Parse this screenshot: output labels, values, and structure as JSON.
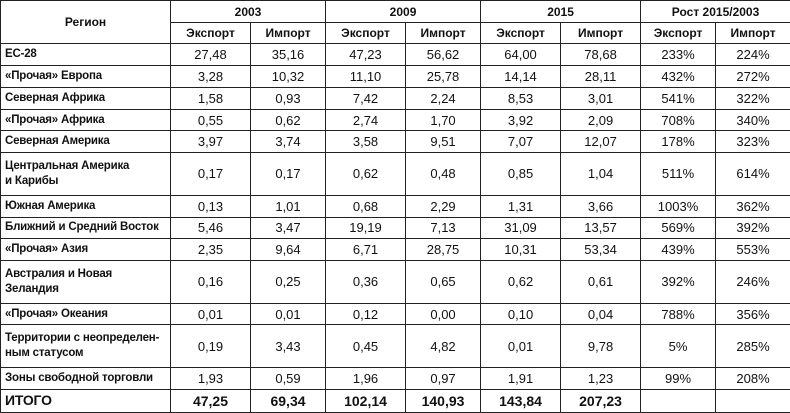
{
  "table": {
    "header": {
      "region": "Регион",
      "groups": [
        "2003",
        "2009",
        "2015",
        "Рост 2015/2003"
      ],
      "sub": [
        "Экспорт",
        "Импорт",
        "Экспорт",
        "Импорт",
        "Экспорт",
        "Импорт",
        "Экспорт",
        "Импорт"
      ]
    },
    "rows": [
      [
        "ЕС-28",
        "27,48",
        "35,16",
        "47,23",
        "56,62",
        "64,00",
        "78,68",
        "233%",
        "224%"
      ],
      [
        "«Прочая» Европа",
        "3,28",
        "10,32",
        "11,10",
        "25,78",
        "14,14",
        "28,11",
        "432%",
        "272%"
      ],
      [
        "Северная Африка",
        "1,58",
        "0,93",
        "7,42",
        "2,24",
        "8,53",
        "3,01",
        "541%",
        "322%"
      ],
      [
        "«Прочая» Африка",
        "0,55",
        "0,62",
        "2,74",
        "1,70",
        "3,92",
        "2,09",
        "708%",
        "340%"
      ],
      [
        "Северная Америка",
        "3,97",
        "3,74",
        "3,58",
        "9,51",
        "7,07",
        "12,07",
        "178%",
        "323%"
      ],
      [
        "Центральная Америка\nи Карибы",
        "0,17",
        "0,17",
        "0,62",
        "0,48",
        "0,85",
        "1,04",
        "511%",
        "614%"
      ],
      [
        "Южная Америка",
        "0,13",
        "1,01",
        "0,68",
        "2,29",
        "1,31",
        "3,66",
        "1003%",
        "362%"
      ],
      [
        "Ближний и Средний Восток",
        "5,46",
        "3,47",
        "19,19",
        "7,13",
        "31,09",
        "13,57",
        "569%",
        "392%"
      ],
      [
        "«Прочая» Азия",
        "2,35",
        "9,64",
        "6,71",
        "28,75",
        "10,31",
        "53,34",
        "439%",
        "553%"
      ],
      [
        "Австралия и Новая Зеландия",
        "0,16",
        "0,25",
        "0,36",
        "0,65",
        "0,62",
        "0,61",
        "392%",
        "246%"
      ],
      [
        "«Прочая» Океания",
        "0,01",
        "0,01",
        "0,12",
        "0,00",
        "0,10",
        "0,04",
        "788%",
        "356%"
      ],
      [
        "Территории с неопределен-\nным статусом",
        "0,19",
        "3,43",
        "0,45",
        "4,82",
        "0,01",
        "9,78",
        "5%",
        "285%"
      ],
      [
        "Зоны свободной торговли",
        "1,93",
        "0,59",
        "1,96",
        "0,97",
        "1,91",
        "1,23",
        "99%",
        "208%"
      ]
    ],
    "total": [
      "ИТОГО",
      "47,25",
      "69,34",
      "102,14",
      "140,93",
      "143,84",
      "207,23"
    ]
  }
}
